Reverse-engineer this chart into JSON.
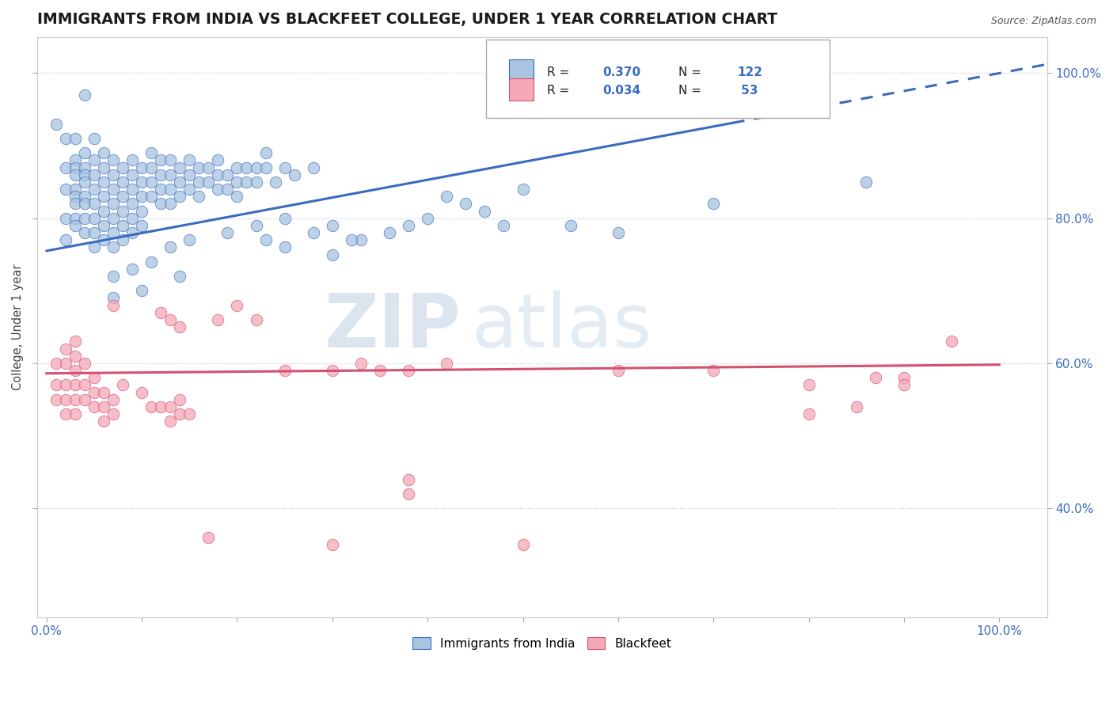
{
  "title": "IMMIGRANTS FROM INDIA VS BLACKFEET COLLEGE, UNDER 1 YEAR CORRELATION CHART",
  "source": "Source: ZipAtlas.com",
  "ylabel": "College, Under 1 year",
  "legend_r1": "0.370",
  "legend_n1": "122",
  "legend_r2": "0.034",
  "legend_n2": "53",
  "color_blue": "#a8c4e0",
  "color_pink": "#f4a8b8",
  "line_blue": "#3a6bbf",
  "line_pink": "#d45070",
  "watermark_zip": "ZIP",
  "watermark_atlas": "atlas",
  "bg_color": "#ffffff",
  "blue_scatter": [
    [
      0.01,
      0.93
    ],
    [
      0.02,
      0.91
    ],
    [
      0.02,
      0.87
    ],
    [
      0.02,
      0.84
    ],
    [
      0.02,
      0.8
    ],
    [
      0.02,
      0.77
    ],
    [
      0.03,
      0.91
    ],
    [
      0.03,
      0.88
    ],
    [
      0.03,
      0.87
    ],
    [
      0.03,
      0.86
    ],
    [
      0.03,
      0.84
    ],
    [
      0.03,
      0.83
    ],
    [
      0.03,
      0.82
    ],
    [
      0.03,
      0.8
    ],
    [
      0.03,
      0.79
    ],
    [
      0.04,
      0.89
    ],
    [
      0.04,
      0.87
    ],
    [
      0.04,
      0.86
    ],
    [
      0.04,
      0.85
    ],
    [
      0.04,
      0.83
    ],
    [
      0.04,
      0.82
    ],
    [
      0.04,
      0.8
    ],
    [
      0.04,
      0.78
    ],
    [
      0.05,
      0.91
    ],
    [
      0.05,
      0.88
    ],
    [
      0.05,
      0.86
    ],
    [
      0.05,
      0.84
    ],
    [
      0.05,
      0.82
    ],
    [
      0.05,
      0.8
    ],
    [
      0.05,
      0.78
    ],
    [
      0.05,
      0.76
    ],
    [
      0.06,
      0.89
    ],
    [
      0.06,
      0.87
    ],
    [
      0.06,
      0.85
    ],
    [
      0.06,
      0.83
    ],
    [
      0.06,
      0.81
    ],
    [
      0.06,
      0.79
    ],
    [
      0.06,
      0.77
    ],
    [
      0.07,
      0.88
    ],
    [
      0.07,
      0.86
    ],
    [
      0.07,
      0.84
    ],
    [
      0.07,
      0.82
    ],
    [
      0.07,
      0.8
    ],
    [
      0.07,
      0.78
    ],
    [
      0.07,
      0.76
    ],
    [
      0.08,
      0.87
    ],
    [
      0.08,
      0.85
    ],
    [
      0.08,
      0.83
    ],
    [
      0.08,
      0.81
    ],
    [
      0.08,
      0.79
    ],
    [
      0.08,
      0.77
    ],
    [
      0.09,
      0.88
    ],
    [
      0.09,
      0.86
    ],
    [
      0.09,
      0.84
    ],
    [
      0.09,
      0.82
    ],
    [
      0.09,
      0.8
    ],
    [
      0.09,
      0.78
    ],
    [
      0.1,
      0.87
    ],
    [
      0.1,
      0.85
    ],
    [
      0.1,
      0.83
    ],
    [
      0.1,
      0.81
    ],
    [
      0.1,
      0.79
    ],
    [
      0.11,
      0.89
    ],
    [
      0.11,
      0.87
    ],
    [
      0.11,
      0.85
    ],
    [
      0.11,
      0.83
    ],
    [
      0.12,
      0.88
    ],
    [
      0.12,
      0.86
    ],
    [
      0.12,
      0.84
    ],
    [
      0.12,
      0.82
    ],
    [
      0.13,
      0.88
    ],
    [
      0.13,
      0.86
    ],
    [
      0.13,
      0.84
    ],
    [
      0.13,
      0.82
    ],
    [
      0.14,
      0.87
    ],
    [
      0.14,
      0.85
    ],
    [
      0.14,
      0.83
    ],
    [
      0.15,
      0.88
    ],
    [
      0.15,
      0.86
    ],
    [
      0.15,
      0.84
    ],
    [
      0.16,
      0.87
    ],
    [
      0.16,
      0.85
    ],
    [
      0.16,
      0.83
    ],
    [
      0.17,
      0.87
    ],
    [
      0.17,
      0.85
    ],
    [
      0.18,
      0.88
    ],
    [
      0.18,
      0.86
    ],
    [
      0.18,
      0.84
    ],
    [
      0.19,
      0.86
    ],
    [
      0.19,
      0.84
    ],
    [
      0.2,
      0.87
    ],
    [
      0.2,
      0.85
    ],
    [
      0.2,
      0.83
    ],
    [
      0.21,
      0.87
    ],
    [
      0.21,
      0.85
    ],
    [
      0.22,
      0.87
    ],
    [
      0.22,
      0.85
    ],
    [
      0.23,
      0.89
    ],
    [
      0.23,
      0.87
    ],
    [
      0.24,
      0.85
    ],
    [
      0.25,
      0.87
    ],
    [
      0.26,
      0.86
    ],
    [
      0.28,
      0.87
    ],
    [
      0.04,
      0.97
    ],
    [
      0.07,
      0.72
    ],
    [
      0.07,
      0.69
    ],
    [
      0.09,
      0.73
    ],
    [
      0.11,
      0.74
    ],
    [
      0.13,
      0.76
    ],
    [
      0.15,
      0.77
    ],
    [
      0.19,
      0.78
    ],
    [
      0.22,
      0.79
    ],
    [
      0.23,
      0.77
    ],
    [
      0.25,
      0.8
    ],
    [
      0.28,
      0.78
    ],
    [
      0.3,
      0.79
    ],
    [
      0.33,
      0.77
    ],
    [
      0.36,
      0.78
    ],
    [
      0.38,
      0.79
    ],
    [
      0.4,
      0.8
    ],
    [
      0.42,
      0.83
    ],
    [
      0.44,
      0.82
    ],
    [
      0.46,
      0.81
    ],
    [
      0.48,
      0.79
    ],
    [
      0.5,
      0.84
    ],
    [
      0.55,
      0.79
    ],
    [
      0.6,
      0.78
    ],
    [
      0.7,
      0.82
    ],
    [
      0.86,
      0.85
    ],
    [
      0.25,
      0.76
    ],
    [
      0.3,
      0.75
    ],
    [
      0.32,
      0.77
    ],
    [
      0.1,
      0.7
    ],
    [
      0.14,
      0.72
    ]
  ],
  "pink_scatter": [
    [
      0.01,
      0.6
    ],
    [
      0.01,
      0.57
    ],
    [
      0.01,
      0.55
    ],
    [
      0.02,
      0.62
    ],
    [
      0.02,
      0.6
    ],
    [
      0.02,
      0.57
    ],
    [
      0.02,
      0.55
    ],
    [
      0.02,
      0.53
    ],
    [
      0.03,
      0.63
    ],
    [
      0.03,
      0.61
    ],
    [
      0.03,
      0.59
    ],
    [
      0.03,
      0.57
    ],
    [
      0.03,
      0.55
    ],
    [
      0.03,
      0.53
    ],
    [
      0.04,
      0.6
    ],
    [
      0.04,
      0.57
    ],
    [
      0.04,
      0.55
    ],
    [
      0.05,
      0.58
    ],
    [
      0.05,
      0.56
    ],
    [
      0.05,
      0.54
    ],
    [
      0.06,
      0.56
    ],
    [
      0.06,
      0.54
    ],
    [
      0.06,
      0.52
    ],
    [
      0.07,
      0.55
    ],
    [
      0.07,
      0.53
    ],
    [
      0.08,
      0.57
    ],
    [
      0.1,
      0.56
    ],
    [
      0.11,
      0.54
    ],
    [
      0.12,
      0.54
    ],
    [
      0.13,
      0.54
    ],
    [
      0.13,
      0.52
    ],
    [
      0.14,
      0.55
    ],
    [
      0.14,
      0.53
    ],
    [
      0.15,
      0.53
    ],
    [
      0.07,
      0.68
    ],
    [
      0.12,
      0.67
    ],
    [
      0.13,
      0.66
    ],
    [
      0.14,
      0.65
    ],
    [
      0.18,
      0.66
    ],
    [
      0.2,
      0.68
    ],
    [
      0.22,
      0.66
    ],
    [
      0.25,
      0.59
    ],
    [
      0.3,
      0.59
    ],
    [
      0.33,
      0.6
    ],
    [
      0.35,
      0.59
    ],
    [
      0.38,
      0.59
    ],
    [
      0.42,
      0.6
    ],
    [
      0.6,
      0.59
    ],
    [
      0.7,
      0.59
    ],
    [
      0.8,
      0.57
    ],
    [
      0.8,
      0.53
    ],
    [
      0.85,
      0.54
    ],
    [
      0.87,
      0.58
    ],
    [
      0.9,
      0.58
    ],
    [
      0.9,
      0.57
    ],
    [
      0.95,
      0.63
    ],
    [
      0.17,
      0.36
    ],
    [
      0.3,
      0.35
    ],
    [
      0.38,
      0.42
    ],
    [
      0.38,
      0.44
    ],
    [
      0.5,
      0.35
    ]
  ],
  "blue_line": {
    "x0": 0.0,
    "y0": 0.755,
    "x1": 1.0,
    "y1": 1.0,
    "dash_start": 0.72
  },
  "pink_line": {
    "x0": 0.0,
    "y0": 0.586,
    "x1": 1.0,
    "y1": 0.598
  },
  "ylim": [
    0.25,
    1.05
  ],
  "xlim": [
    -0.01,
    1.05
  ],
  "yticks": [
    0.4,
    0.6,
    0.8,
    1.0
  ],
  "ytick_labels": [
    "40.0%",
    "60.0%",
    "80.0%",
    "100.0%"
  ],
  "xticks": [
    0.0,
    0.1,
    0.2,
    0.3,
    0.4,
    0.5,
    0.6,
    0.7,
    0.8,
    0.9,
    1.0
  ],
  "xtick_labels_show": [
    "0.0%",
    "100.0%"
  ]
}
